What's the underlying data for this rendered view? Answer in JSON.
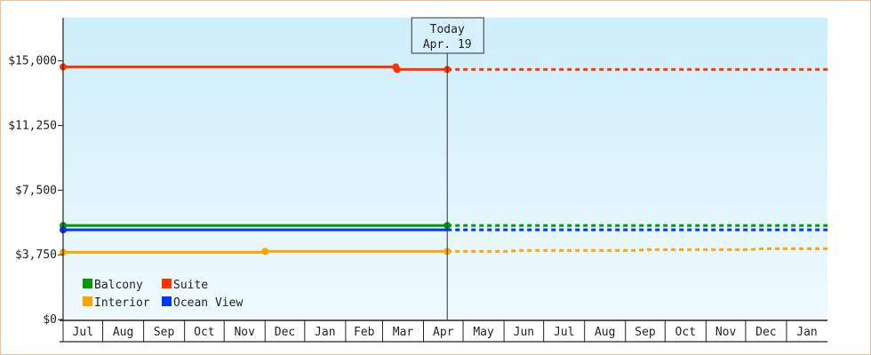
{
  "chart_data": {
    "type": "line",
    "y_ticks": [
      "$0",
      "$3,750",
      "$7,500",
      "$11,250",
      "$15,000"
    ],
    "y_tick_values": [
      0,
      3750,
      7500,
      11250,
      15000
    ],
    "ylim": [
      0,
      17500
    ],
    "months": [
      "Jul",
      "Aug",
      "Sep",
      "Oct",
      "Nov",
      "Dec",
      "Jan",
      "Feb",
      "Mar",
      "Apr",
      "May",
      "Jun",
      "Jul",
      "Aug",
      "Sep",
      "Oct",
      "Nov",
      "Dec",
      "Jan"
    ],
    "month_widths": [
      30,
      31,
      31,
      30,
      31,
      30,
      31,
      28,
      31,
      30,
      31,
      30,
      31,
      31,
      30,
      31,
      30,
      31,
      31
    ],
    "today": {
      "label": "Today",
      "date": "Apr. 19",
      "day_index": 291
    },
    "grid": false,
    "legend_position": "bottom-left",
    "series": [
      {
        "name": "Suite",
        "color": "#ff3300",
        "solid": [
          [
            0,
            14650
          ],
          [
            16,
            14650
          ],
          [
            33,
            14650
          ],
          [
            41,
            14650
          ],
          [
            47,
            14650
          ],
          [
            100,
            14650
          ],
          [
            200,
            14650
          ],
          [
            252,
            14650
          ],
          [
            253,
            14500
          ],
          [
            260,
            14500
          ],
          [
            291,
            14500
          ]
        ],
        "dashed": [
          [
            291,
            14500
          ],
          [
            580,
            14500
          ]
        ],
        "markers": [
          [
            0,
            14650
          ],
          [
            252,
            14650
          ],
          [
            253,
            14500
          ],
          [
            291,
            14500
          ]
        ]
      },
      {
        "name": "Balcony",
        "color": "#009900",
        "solid": [
          [
            0,
            5450
          ],
          [
            291,
            5450
          ]
        ],
        "dashed": [
          [
            291,
            5450
          ],
          [
            580,
            5450
          ]
        ],
        "markers": [
          [
            0,
            5450
          ],
          [
            291,
            5450
          ]
        ]
      },
      {
        "name": "Ocean View",
        "color": "#0033ff",
        "solid": [
          [
            0,
            5200
          ],
          [
            291,
            5200
          ]
        ],
        "dashed": [
          [
            291,
            5200
          ],
          [
            580,
            5200
          ]
        ],
        "markers": [
          [
            0,
            5200
          ]
        ]
      },
      {
        "name": "Interior",
        "color": "#ffa500",
        "solid": [
          [
            0,
            3900
          ],
          [
            152,
            3900
          ],
          [
            153,
            3950
          ],
          [
            291,
            3950
          ]
        ],
        "dashed": [
          [
            291,
            3950
          ],
          [
            335,
            3950
          ],
          [
            345,
            4000
          ],
          [
            435,
            4000
          ],
          [
            440,
            4050
          ],
          [
            520,
            4050
          ],
          [
            530,
            4100
          ],
          [
            580,
            4100
          ]
        ],
        "markers": [
          [
            0,
            3900
          ],
          [
            153,
            3950
          ],
          [
            291,
            3950
          ]
        ]
      }
    ],
    "legend": [
      {
        "name": "Balcony",
        "color": "#009900"
      },
      {
        "name": "Suite",
        "color": "#ff3300"
      },
      {
        "name": "Interior",
        "color": "#ffa500"
      },
      {
        "name": "Ocean View",
        "color": "#0033ff"
      }
    ]
  }
}
